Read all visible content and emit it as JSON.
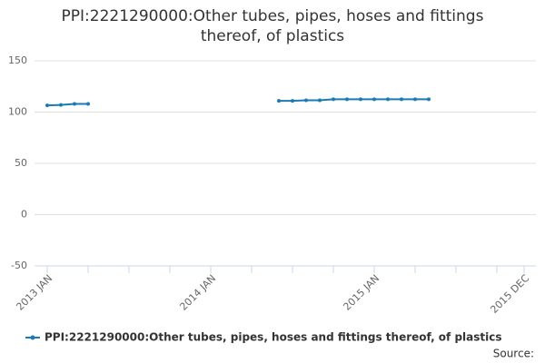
{
  "chart_data": {
    "type": "line",
    "title": "PPI:2221290000:Other tubes, pipes, hoses and fittings thereof, of plastics",
    "categories": [
      "2013 JAN",
      null,
      null,
      null,
      null,
      null,
      null,
      null,
      null,
      null,
      null,
      null,
      "2014 JAN",
      null,
      null,
      null,
      null,
      null,
      null,
      null,
      null,
      null,
      null,
      null,
      "2015 JAN",
      null,
      null,
      null,
      null,
      null,
      null,
      null,
      null,
      null,
      null,
      "2015 DEC"
    ],
    "series": [
      {
        "name": "PPI:2221290000:Other tubes, pipes, hoses and fittings thereof, of plastics",
        "color": "#1a7ab5",
        "values": [
          106.5,
          107,
          108,
          108,
          null,
          null,
          null,
          null,
          null,
          null,
          null,
          null,
          null,
          null,
          null,
          null,
          null,
          111,
          111,
          111.5,
          111.5,
          112.5,
          112.5,
          112.5,
          112.5,
          112.5,
          112.5,
          112.5,
          112.5,
          null,
          null,
          null,
          null,
          null,
          null,
          null
        ]
      }
    ],
    "ylim": [
      -50,
      150
    ],
    "yticks": [
      -50,
      0,
      50,
      100,
      150
    ],
    "grid": true,
    "legend": "bottom",
    "source_label": "Source:"
  }
}
